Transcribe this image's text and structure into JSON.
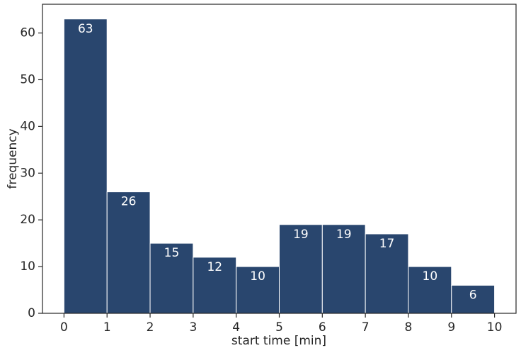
{
  "chart_data": {
    "type": "histogram",
    "x_label": "start time [min]",
    "y_label": "frequency",
    "bins": [
      0,
      1,
      2,
      3,
      4,
      5,
      6,
      7,
      8,
      9,
      10
    ],
    "values": [
      63,
      26,
      15,
      12,
      10,
      19,
      19,
      17,
      10,
      6
    ],
    "color": "#29466e",
    "xlim": [
      -0.5,
      10.5
    ],
    "xticks": [
      0,
      1,
      2,
      3,
      4,
      5,
      6,
      7,
      8,
      9,
      10
    ],
    "ylim": [
      0,
      66.15
    ],
    "yticks": [
      0,
      10,
      20,
      30,
      40,
      50,
      60
    ],
    "grid": false
  }
}
